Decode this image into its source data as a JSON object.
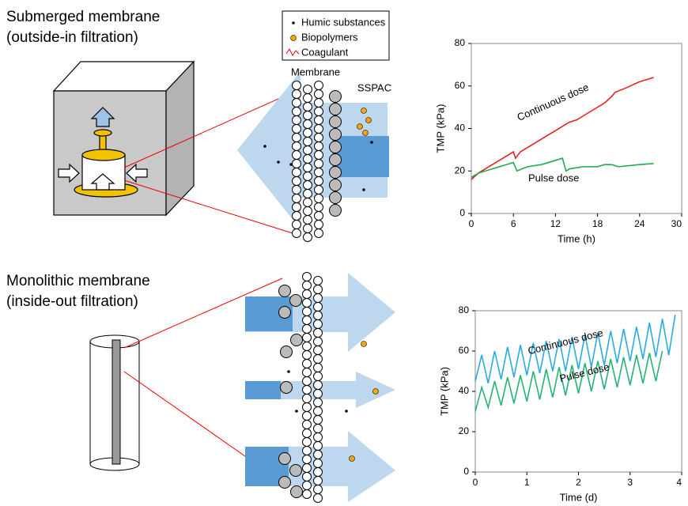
{
  "diagram": {
    "top_title": "Submerged membrane",
    "top_subtitle": "(outside-in filtration)",
    "bottom_title": "Monolithic membrane",
    "bottom_subtitle": "(inside-out filtration)",
    "legend": [
      "Humic substances",
      "Biopolymers",
      "Coagulant"
    ],
    "membrane_label": "Membrane",
    "sspac_label": "SSPAC"
  },
  "chart_data": [
    {
      "type": "line",
      "xlabel": "Time (h)",
      "ylabel": "TMP (kPa)",
      "xlim": [
        0,
        30
      ],
      "xticks": [
        0,
        6,
        12,
        18,
        24,
        30
      ],
      "ylim": [
        0,
        80
      ],
      "yticks": [
        0,
        20,
        40,
        60,
        80
      ],
      "series": [
        {
          "name": "Continuous dose",
          "color": "#e8211c",
          "x": [
            0,
            1,
            2,
            3,
            4,
            5,
            6,
            6.3,
            7,
            8,
            9,
            10,
            11,
            12,
            13,
            14,
            15,
            16,
            17,
            18,
            19,
            20,
            20.5,
            22,
            24,
            26
          ],
          "values": [
            16,
            19,
            21,
            23,
            25,
            27,
            29,
            26,
            29,
            31,
            33,
            35,
            37,
            39,
            41,
            43,
            44,
            46,
            48,
            50,
            52,
            55,
            57,
            59,
            62,
            64
          ]
        },
        {
          "name": "Pulse dose",
          "color": "#1eab4f",
          "x": [
            0,
            1,
            2,
            4,
            6,
            6.5,
            8,
            10,
            12,
            13,
            13.5,
            14,
            16,
            18,
            19,
            20,
            21,
            24,
            26
          ],
          "values": [
            17,
            19,
            20,
            22,
            24,
            20,
            22,
            23,
            25,
            26,
            20,
            21,
            22,
            22,
            23,
            23,
            22,
            23,
            23.5
          ]
        }
      ]
    },
    {
      "type": "line",
      "xlabel": "Time (d)",
      "ylabel": "TMP (kPa)",
      "xlim": [
        0,
        4
      ],
      "xticks": [
        0,
        1,
        2,
        3,
        4
      ],
      "ylim": [
        0,
        80
      ],
      "yticks": [
        0,
        20,
        40,
        60,
        80
      ],
      "series": [
        {
          "name": "Continuous dose",
          "color": "#29abe2",
          "x": [
            0,
            0.125,
            0.25,
            0.375,
            0.5,
            0.625,
            0.75,
            0.875,
            1,
            1.125,
            1.25,
            1.375,
            1.5,
            1.625,
            1.75,
            1.875,
            2,
            2.125,
            2.25,
            2.375,
            2.5,
            2.625,
            2.75,
            2.875,
            3,
            3.125,
            3.25,
            3.375,
            3.5,
            3.625,
            3.75,
            3.875
          ],
          "values": [
            45,
            58,
            44,
            60,
            46,
            62,
            47,
            63,
            48,
            64,
            49,
            65,
            50,
            66,
            50,
            67,
            51,
            68,
            52,
            69,
            53,
            70,
            54,
            71,
            55,
            72,
            56,
            74,
            57,
            76,
            58,
            78
          ]
        },
        {
          "name": "Pulse dose",
          "color": "#22b573",
          "x": [
            0,
            0.125,
            0.25,
            0.375,
            0.5,
            0.625,
            0.75,
            0.875,
            1,
            1.125,
            1.25,
            1.375,
            1.5,
            1.625,
            1.75,
            1.875,
            2,
            2.125,
            2.25,
            2.375,
            2.5,
            2.625,
            2.75,
            2.875,
            3,
            3.125,
            3.25,
            3.375,
            3.5,
            3.625
          ],
          "values": [
            30,
            42,
            32,
            45,
            33,
            47,
            34,
            48,
            35,
            50,
            36,
            51,
            37,
            52,
            38,
            53,
            39,
            54,
            40,
            55,
            41,
            56,
            42,
            57,
            43,
            58,
            44,
            59,
            45,
            60
          ]
        }
      ]
    }
  ]
}
